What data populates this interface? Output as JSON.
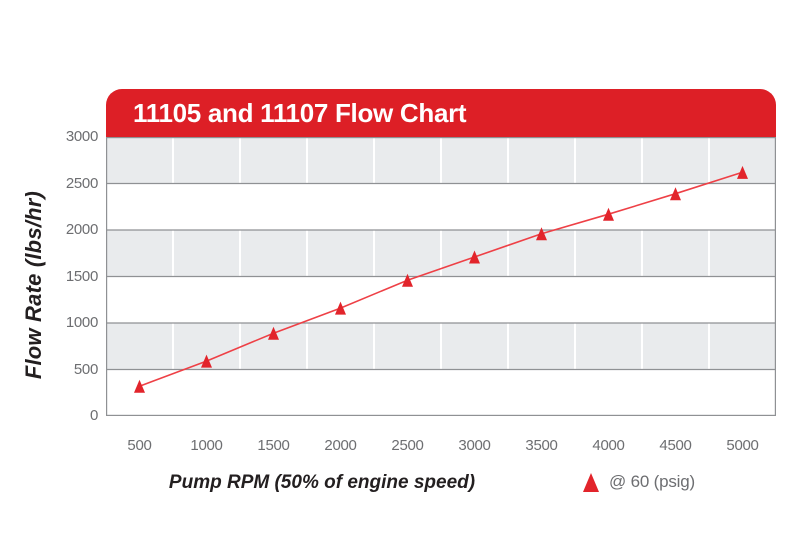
{
  "palette": {
    "banner_red": "#dd1f26",
    "marker_red": "#e2242b",
    "line_red": "#ee4046",
    "band_gray": "#e9ebed",
    "grid_gray": "#8f9194",
    "vline_white": "#ffffff",
    "tick_gray": "#6d6e71",
    "text_dark": "#231f20"
  },
  "chart_data": {
    "type": "line",
    "title": "11105 and 11107 Flow Chart",
    "xlabel": "Pump RPM (50% of engine speed)",
    "ylabel": "Flow Rate (lbs/hr)",
    "categories": [
      500,
      1000,
      1500,
      2000,
      2500,
      3000,
      3500,
      4000,
      4500,
      5000
    ],
    "series": [
      {
        "name": "@ 60 (psig)",
        "marker": "triangle-up",
        "values": [
          320,
          590,
          890,
          1160,
          1460,
          1710,
          1960,
          2170,
          2390,
          2620
        ]
      }
    ],
    "ylim": [
      0,
      3000
    ],
    "yticks": [
      0,
      500,
      1000,
      1500,
      2000,
      2500,
      3000
    ],
    "grid": "horizontal gridlines every 500; white vertical separators between categories; alternating gray/white horizontal bands",
    "legend_position": "below-right"
  }
}
